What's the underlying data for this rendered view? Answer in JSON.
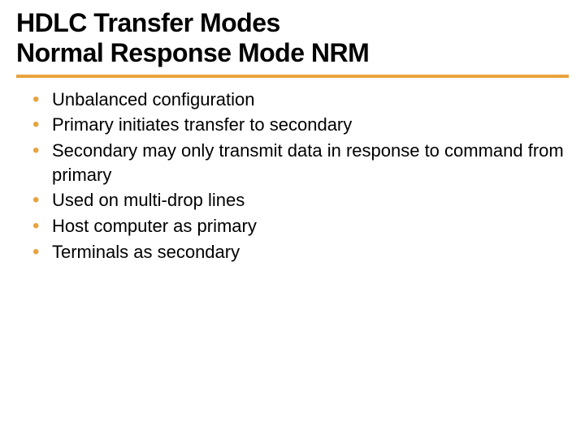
{
  "title_line1": "HDLC Transfer Modes",
  "title_line2": "Normal Response Mode NRM",
  "accent_color": "#e8a33d",
  "bullets": [
    "Unbalanced configuration",
    "Primary initiates transfer to secondary",
    "Secondary may only transmit data in response to command from primary",
    "Used on multi-drop lines",
    "Host computer as primary",
    "Terminals as secondary"
  ]
}
